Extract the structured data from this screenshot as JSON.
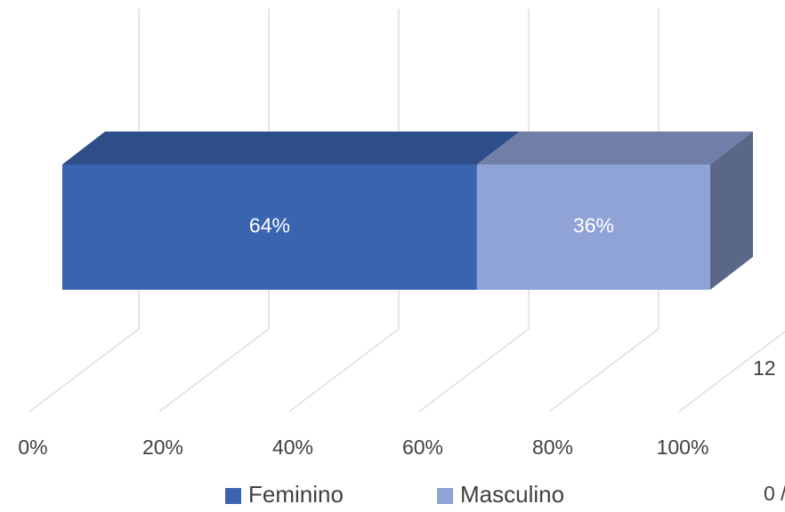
{
  "chart_data": {
    "type": "bar",
    "orientation": "horizontal",
    "stacked": true,
    "categories": [
      null
    ],
    "series": [
      {
        "name": "Feminino",
        "color": "#3b64b0",
        "values": [
          64
        ],
        "value_labels": [
          "64%"
        ]
      },
      {
        "name": "Masculino",
        "color": "#8fa3d6",
        "values": [
          36
        ],
        "value_labels": [
          "36%"
        ]
      }
    ],
    "xlim": [
      0,
      100
    ],
    "xticks": [
      {
        "value": 0,
        "label": "0%"
      },
      {
        "value": 20,
        "label": "20%"
      },
      {
        "value": 40,
        "label": "40%"
      },
      {
        "value": 60,
        "label": "60%"
      },
      {
        "value": 80,
        "label": "80%"
      },
      {
        "value": 100,
        "label": "100%"
      }
    ],
    "grid": true,
    "legend": "bottom",
    "annotations": [
      "12",
      "0 /"
    ]
  }
}
